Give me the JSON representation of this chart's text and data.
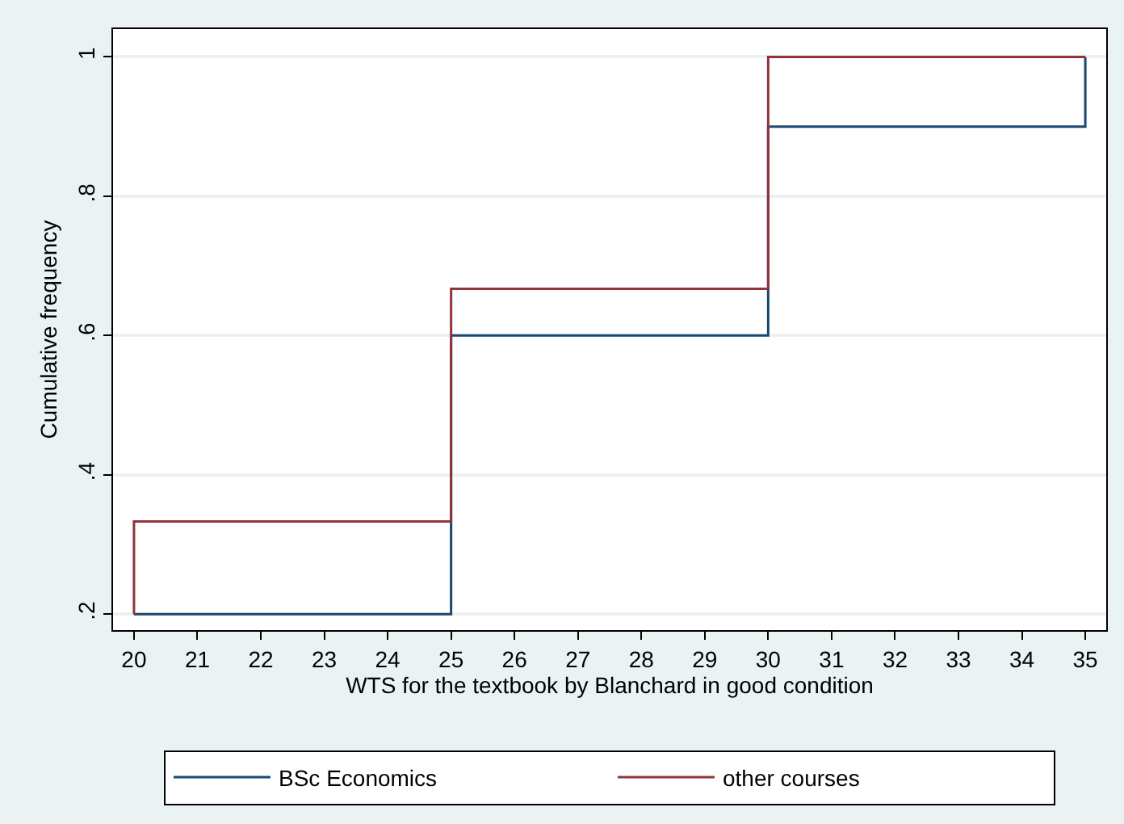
{
  "chart_data": {
    "type": "step",
    "xlabel": "WTS for the textbook by Blanchard in good condition",
    "ylabel": "Cumulative frequency",
    "series": [
      {
        "name": "BSc Economics",
        "color": "#1a476f",
        "x": [
          20,
          25,
          30,
          35
        ],
        "values": [
          0.2,
          0.6,
          0.9,
          1
        ]
      },
      {
        "name": "other courses",
        "color": "#90353b",
        "x": [
          20,
          20,
          25,
          30,
          35
        ],
        "values": [
          0.2,
          0.333,
          0.667,
          1,
          1
        ]
      }
    ],
    "xlim": [
      19.67,
      35.33
    ],
    "xticks": [
      20,
      21,
      22,
      23,
      24,
      25,
      26,
      27,
      28,
      29,
      30,
      31,
      32,
      33,
      34,
      35
    ],
    "ylim": [
      0.177,
      1.04
    ],
    "yticks": [
      {
        "value": 0.2,
        "label": ".2"
      },
      {
        "value": 0.4,
        "label": ".4"
      },
      {
        "value": 0.6,
        "label": ".6"
      },
      {
        "value": 0.8,
        "label": ".8"
      },
      {
        "value": 1,
        "label": "1"
      }
    ],
    "grid": "y",
    "legend": "bottom",
    "marker": "none",
    "line_style": "solid"
  }
}
